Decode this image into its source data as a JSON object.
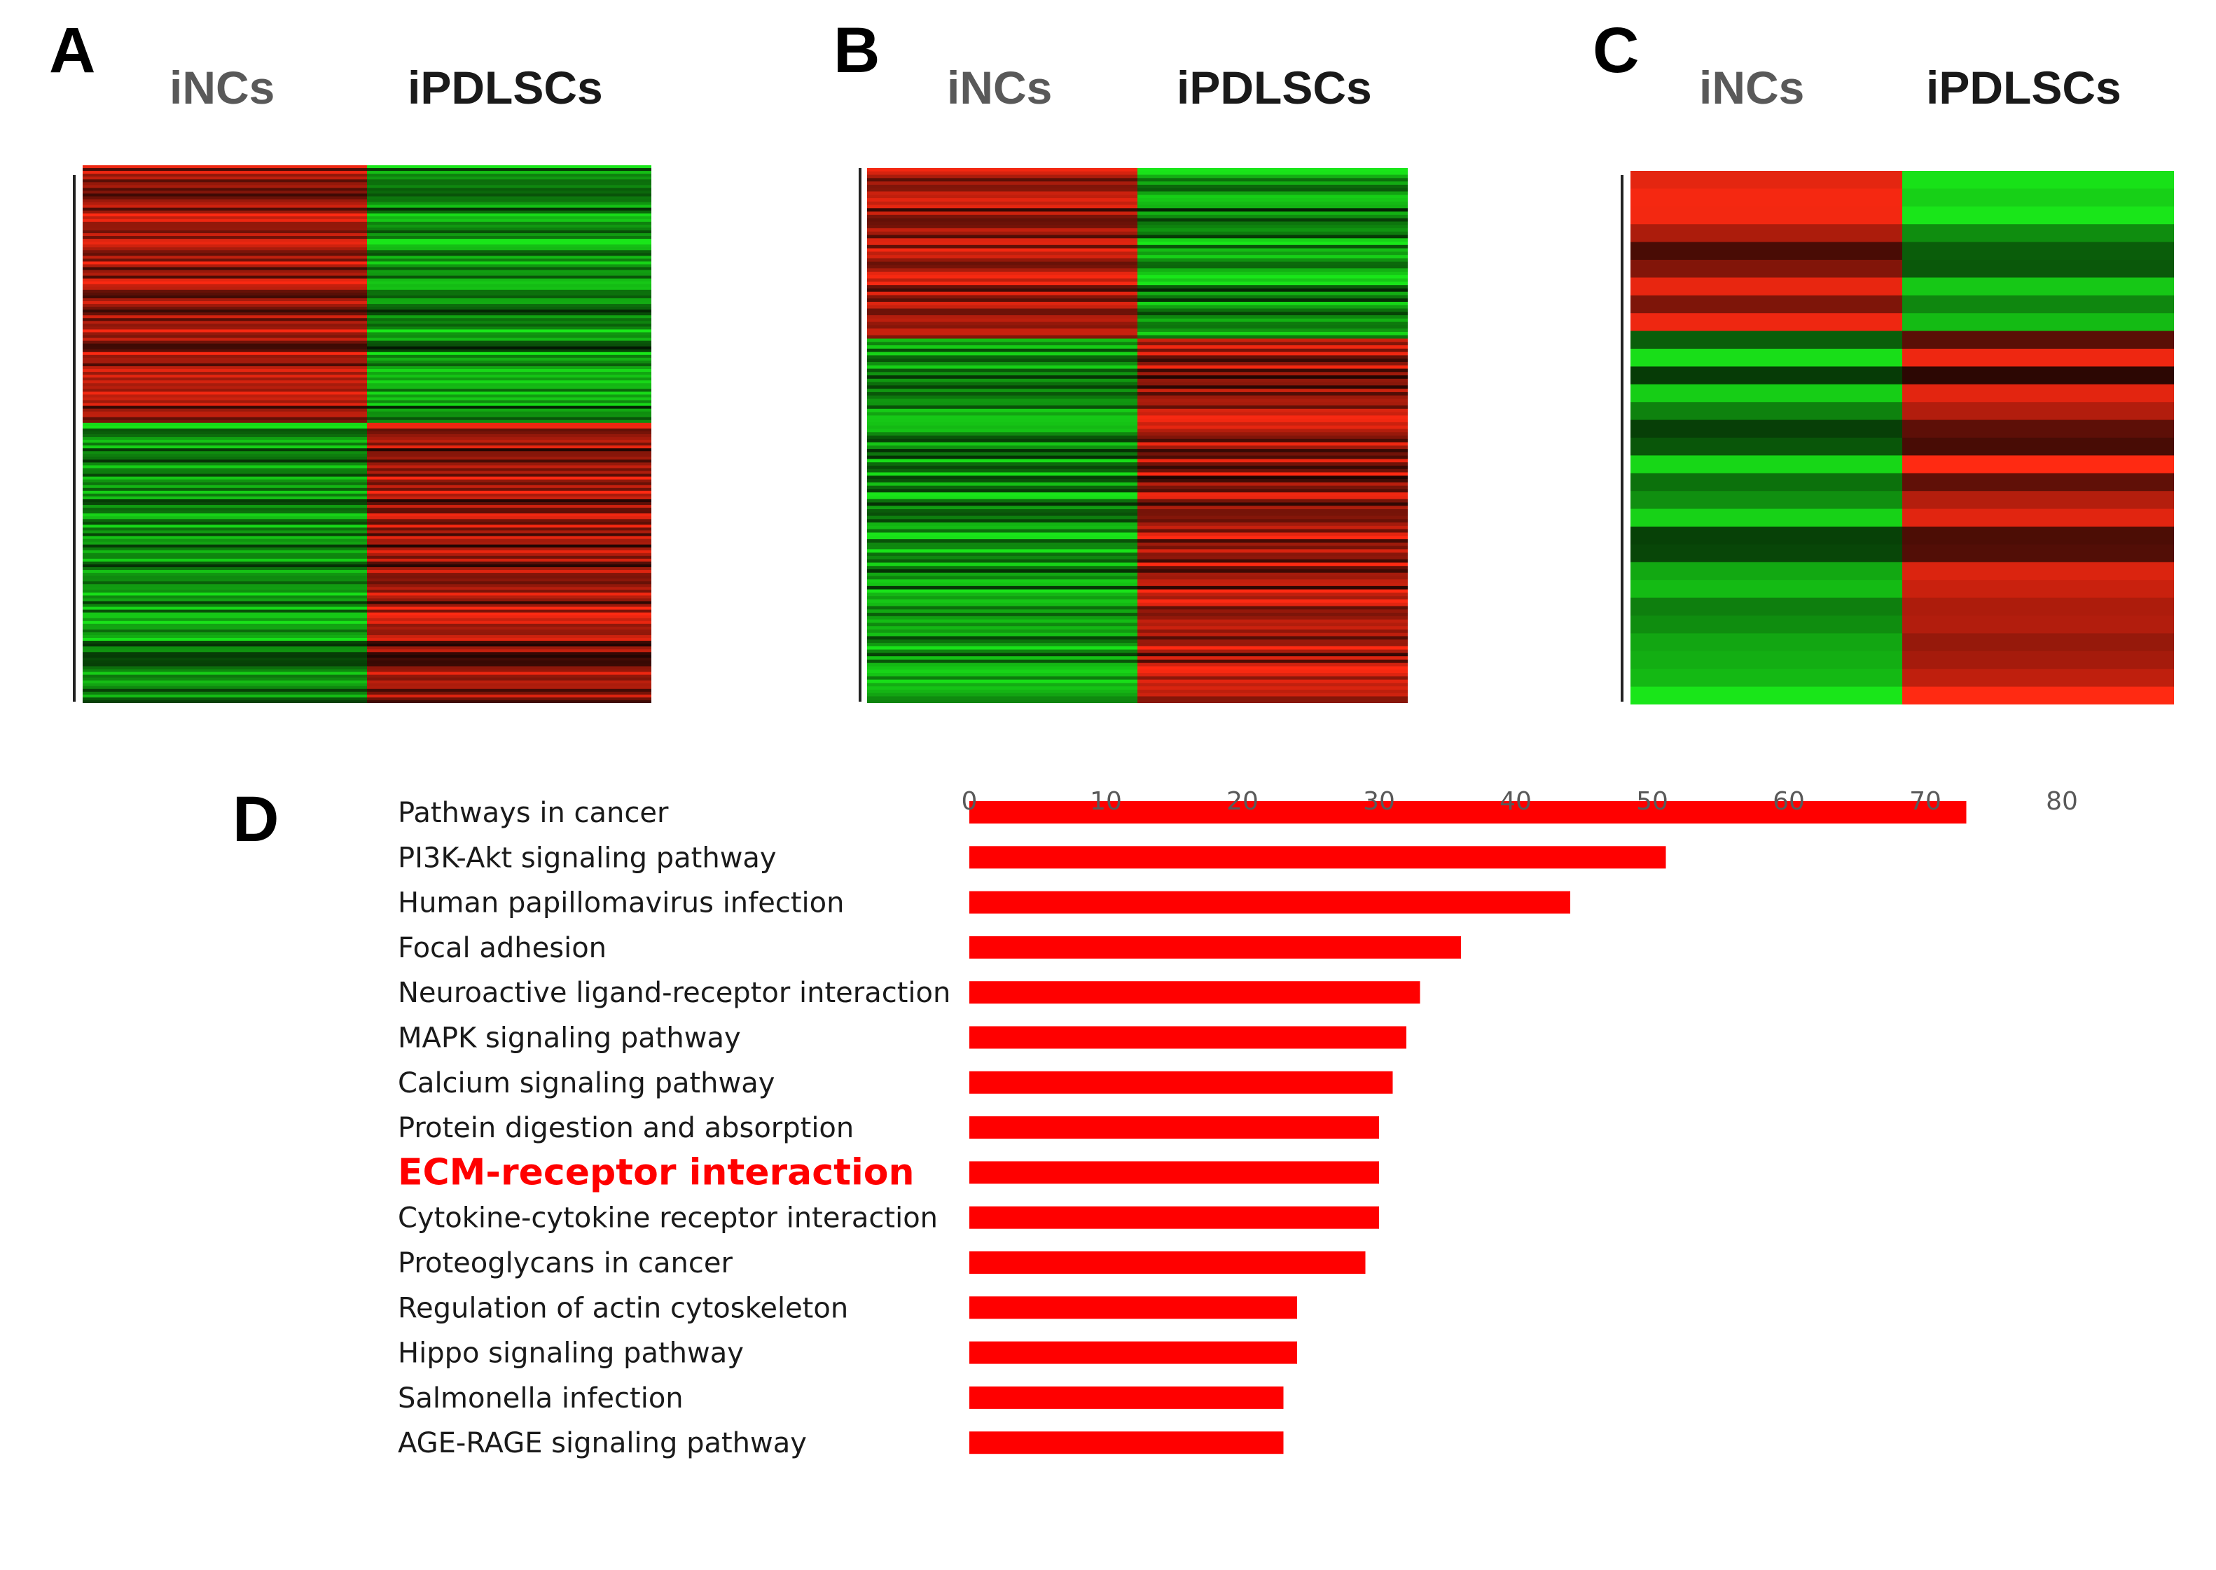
{
  "panels": {
    "a": {
      "letter": "A",
      "left_label": "iNCs",
      "right_label": "iPDLSCs"
    },
    "b": {
      "letter": "B",
      "left_label": "iNCs",
      "right_label": "iPDLSCs"
    },
    "c": {
      "letter": "C",
      "left_label": "iNCs",
      "right_label": "iPDLSCs"
    },
    "d": {
      "letter": "D"
    }
  },
  "colors": {
    "up": "#ff2a12",
    "down": "#19e619",
    "bar": "#ff0000",
    "highlight_text": "#ff0000",
    "text": "#1a1a1a",
    "tick": "#595959"
  },
  "heatmaps": [
    {
      "panel": "A",
      "columns": [
        "iNCs",
        "iPDLSCs"
      ],
      "rows": 190,
      "upper_fraction": 0.48,
      "upper_pattern": "iNCs high / iPDLSCs low",
      "lower_pattern": "iNCs low / iPDLSCs high"
    },
    {
      "panel": "B",
      "columns": [
        "iNCs",
        "iPDLSCs"
      ],
      "rows": 160,
      "upper_fraction": 0.32,
      "upper_pattern": "iNCs high / iPDLSCs low",
      "lower_pattern": "iNCs low / iPDLSCs high"
    },
    {
      "panel": "C",
      "columns": [
        "iNCs",
        "iPDLSCs"
      ],
      "rows": 30,
      "upper_fraction": 0.3,
      "upper_pattern": "iNCs high / iPDLSCs low",
      "lower_pattern": "iNCs low / iPDLSCs high"
    }
  ],
  "chart_data": {
    "type": "bar",
    "orientation": "horizontal",
    "title": "",
    "xlabel": "",
    "ylabel": "",
    "xlim": [
      0,
      80
    ],
    "xticks": [
      0,
      10,
      20,
      30,
      40,
      50,
      60,
      70,
      80
    ],
    "grid": false,
    "highlight": "ECM-receptor interaction",
    "categories": [
      "Pathways in cancer",
      "PI3K-Akt signaling pathway",
      "Human papillomavirus infection",
      "Focal adhesion",
      "Neuroactive ligand-receptor interaction",
      "MAPK signaling pathway",
      "Calcium signaling pathway",
      "Protein digestion and absorption",
      "ECM-receptor interaction",
      "Cytokine-cytokine receptor interaction",
      "Proteoglycans in cancer",
      "Regulation of actin cytoskeleton",
      "Hippo signaling pathway",
      "Salmonella infection",
      "AGE-RAGE signaling pathway"
    ],
    "values": [
      73,
      51,
      44,
      36,
      33,
      32,
      31,
      30,
      30,
      30,
      29,
      24,
      24,
      23,
      23
    ]
  }
}
